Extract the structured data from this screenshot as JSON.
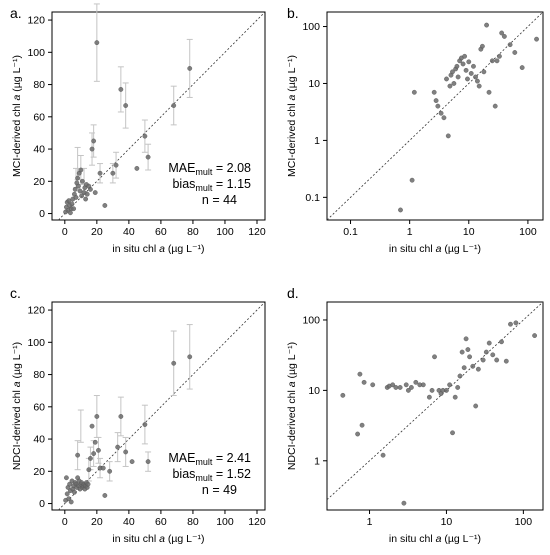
{
  "chart_data": [
    {
      "panel": "a.",
      "type": "scatter",
      "xlabel": "in situ chl a (µg L⁻¹)",
      "ylabel": "MCI-derived chl a (µg L⁻¹)",
      "xscale": "linear",
      "yscale": "linear",
      "xlim": [
        -8,
        125
      ],
      "ylim": [
        -4,
        125
      ],
      "xticks": [
        0,
        20,
        40,
        60,
        80,
        100,
        120
      ],
      "yticks": [
        0,
        20,
        40,
        60,
        80,
        100,
        120
      ],
      "xtick_labels": [
        "0",
        "20",
        "40",
        "60",
        "80",
        "100",
        "120"
      ],
      "ytick_labels": [
        "0",
        "20",
        "40",
        "60",
        "80",
        "100",
        "120"
      ],
      "one_to_one_line": true,
      "annotations": {
        "mae_label": "MAE",
        "mae_sub": "mult",
        "mae_value": " = 2.08",
        "bias_label": "bias",
        "bias_sub": "mult",
        "bias_value": " = 1.15",
        "n_text": "n = 44"
      },
      "points": [
        [
          0.5,
          1
        ],
        [
          1,
          4
        ],
        [
          1.5,
          7
        ],
        [
          2,
          2
        ],
        [
          2.5,
          8
        ],
        [
          3,
          5
        ],
        [
          3.5,
          0.5
        ],
        [
          4,
          3
        ],
        [
          4.5,
          6
        ],
        [
          5,
          9
        ],
        [
          5.5,
          3
        ],
        [
          6,
          12
        ],
        [
          6.5,
          15
        ],
        [
          7,
          10
        ],
        [
          7.5,
          19
        ],
        [
          8,
          22
        ],
        [
          8.5,
          17
        ],
        [
          9,
          25
        ],
        [
          9.5,
          14
        ],
        [
          10,
          27
        ],
        [
          10.5,
          11
        ],
        [
          11,
          20
        ],
        [
          12,
          13
        ],
        [
          12.5,
          16
        ],
        [
          13,
          9
        ],
        [
          13.5,
          18
        ],
        [
          14,
          12
        ],
        [
          15,
          17
        ],
        [
          16,
          15
        ],
        [
          17,
          40
        ],
        [
          18,
          45
        ],
        [
          19,
          13
        ],
        [
          20,
          106
        ],
        [
          22,
          25
        ],
        [
          25,
          5
        ],
        [
          30,
          25
        ],
        [
          32,
          30
        ],
        [
          35,
          77
        ],
        [
          38,
          67
        ],
        [
          45,
          28
        ],
        [
          50,
          48
        ],
        [
          52,
          35
        ],
        [
          68,
          67
        ],
        [
          78,
          90
        ]
      ],
      "errors": [
        [
          7,
          22,
          6
        ],
        [
          8,
          31,
          10
        ],
        [
          10,
          27,
          9
        ],
        [
          12,
          20,
          8
        ],
        [
          17,
          40,
          10
        ],
        [
          18,
          45,
          10
        ],
        [
          20,
          106,
          24
        ],
        [
          22,
          25,
          6
        ],
        [
          30,
          25,
          6
        ],
        [
          32,
          30,
          8
        ],
        [
          35,
          77,
          14
        ],
        [
          38,
          67,
          14
        ],
        [
          50,
          48,
          10
        ],
        [
          52,
          35,
          8
        ],
        [
          68,
          67,
          12
        ],
        [
          78,
          90,
          18
        ]
      ]
    },
    {
      "panel": "b.",
      "type": "scatter",
      "xlabel": "in situ chl a (µg L⁻¹)",
      "ylabel": "MCI-derived chl a (µg L⁻¹)",
      "xscale": "log",
      "yscale": "log",
      "xlim": [
        0.04,
        180
      ],
      "ylim": [
        0.04,
        180
      ],
      "xticks": [
        0.1,
        1,
        10,
        100
      ],
      "yticks": [
        0.1,
        1,
        10,
        100
      ],
      "xtick_labels": [
        "0.1",
        "1",
        "10",
        "100"
      ],
      "ytick_labels": [
        "0.1",
        "1",
        "10",
        "100"
      ],
      "one_to_one_line": true,
      "points": [
        [
          0.7,
          0.06
        ],
        [
          1.1,
          0.2
        ],
        [
          1.2,
          7
        ],
        [
          2.6,
          7
        ],
        [
          2.8,
          5
        ],
        [
          3,
          4
        ],
        [
          3.4,
          3
        ],
        [
          3.8,
          2.5
        ],
        [
          4.2,
          12
        ],
        [
          4.5,
          1.2
        ],
        [
          4.8,
          9
        ],
        [
          5,
          14
        ],
        [
          5.3,
          16
        ],
        [
          5.6,
          10
        ],
        [
          6,
          18
        ],
        [
          6.3,
          20
        ],
        [
          6.6,
          13
        ],
        [
          7,
          25
        ],
        [
          7.5,
          28
        ],
        [
          8,
          22
        ],
        [
          8.5,
          30
        ],
        [
          9,
          17
        ],
        [
          9.5,
          12
        ],
        [
          10,
          24
        ],
        [
          11,
          15
        ],
        [
          12,
          20
        ],
        [
          13,
          13
        ],
        [
          14,
          11
        ],
        [
          15,
          9
        ],
        [
          16,
          40
        ],
        [
          17,
          45
        ],
        [
          18,
          16
        ],
        [
          20,
          106
        ],
        [
          22,
          7
        ],
        [
          25,
          25
        ],
        [
          28,
          4
        ],
        [
          30,
          25
        ],
        [
          33,
          30
        ],
        [
          36,
          77
        ],
        [
          40,
          67
        ],
        [
          50,
          48
        ],
        [
          60,
          35
        ],
        [
          80,
          19
        ],
        [
          140,
          60
        ]
      ]
    },
    {
      "panel": "c.",
      "type": "scatter",
      "xlabel": "in situ chl a (µg L⁻¹)",
      "ylabel": "NDCI-derived chl a (µg L⁻¹)",
      "xscale": "linear",
      "yscale": "linear",
      "xlim": [
        -8,
        125
      ],
      "ylim": [
        -4,
        125
      ],
      "xticks": [
        0,
        20,
        40,
        60,
        80,
        100,
        120
      ],
      "yticks": [
        0,
        20,
        40,
        60,
        80,
        100,
        120
      ],
      "xtick_labels": [
        "0",
        "20",
        "40",
        "60",
        "80",
        "100",
        "120"
      ],
      "ytick_labels": [
        "0",
        "20",
        "40",
        "60",
        "80",
        "100",
        "120"
      ],
      "one_to_one_line": true,
      "annotations": {
        "mae_label": "MAE",
        "mae_sub": "mult",
        "mae_value": " = 2.41",
        "bias_label": "bias",
        "bias_sub": "mult",
        "bias_value": " = 1.52",
        "n_text": "n = 49"
      },
      "points": [
        [
          0.5,
          2
        ],
        [
          1,
          16
        ],
        [
          1.5,
          6
        ],
        [
          2,
          10
        ],
        [
          2.5,
          3
        ],
        [
          3,
          12
        ],
        [
          3.5,
          8
        ],
        [
          4,
          1
        ],
        [
          4.5,
          14
        ],
        [
          5,
          9
        ],
        [
          5.5,
          11
        ],
        [
          6,
          7
        ],
        [
          6.5,
          13
        ],
        [
          7,
          12
        ],
        [
          7.5,
          10
        ],
        [
          8,
          16
        ],
        [
          8.5,
          11
        ],
        [
          9,
          14
        ],
        [
          9.5,
          9
        ],
        [
          10,
          12
        ],
        [
          10.5,
          13
        ],
        [
          11,
          10
        ],
        [
          11.5,
          11
        ],
        [
          12,
          12
        ],
        [
          12.5,
          9
        ],
        [
          13,
          11
        ],
        [
          13.5,
          13
        ],
        [
          14,
          10
        ],
        [
          14.5,
          12
        ],
        [
          15,
          21
        ],
        [
          16,
          28
        ],
        [
          17,
          48
        ],
        [
          18,
          31
        ],
        [
          19,
          38
        ],
        [
          20,
          54
        ],
        [
          21,
          33
        ],
        [
          22,
          22
        ],
        [
          24,
          22
        ],
        [
          25,
          5
        ],
        [
          28,
          20
        ],
        [
          33,
          35
        ],
        [
          35,
          54
        ],
        [
          38,
          32
        ],
        [
          42,
          26
        ],
        [
          50,
          49
        ],
        [
          52,
          26
        ],
        [
          68,
          87
        ],
        [
          78,
          91
        ],
        [
          8,
          30
        ]
      ],
      "errors": [
        [
          8,
          30,
          9
        ],
        [
          10,
          48,
          10
        ],
        [
          15,
          21,
          7
        ],
        [
          16,
          28,
          7
        ],
        [
          18,
          31,
          8
        ],
        [
          20,
          54,
          13
        ],
        [
          21,
          33,
          8
        ],
        [
          22,
          22,
          6
        ],
        [
          28,
          20,
          6
        ],
        [
          33,
          35,
          9
        ],
        [
          35,
          54,
          12
        ],
        [
          38,
          32,
          9
        ],
        [
          50,
          49,
          12
        ],
        [
          52,
          26,
          6
        ],
        [
          68,
          87,
          20
        ],
        [
          78,
          91,
          20
        ]
      ]
    },
    {
      "panel": "d.",
      "type": "scatter",
      "xlabel": "in situ chl a (µg L⁻¹)",
      "ylabel": "NDCI-derived chl a (µg L⁻¹)",
      "xscale": "log",
      "yscale": "log",
      "xlim": [
        0.28,
        180
      ],
      "ylim": [
        0.2,
        180
      ],
      "xticks": [
        1,
        10,
        100
      ],
      "yticks": [
        1,
        10,
        100
      ],
      "xtick_labels": [
        "1",
        "10",
        "100"
      ],
      "ytick_labels": [
        "1",
        "10",
        "100"
      ],
      "one_to_one_line": true,
      "points": [
        [
          0.45,
          8.5
        ],
        [
          0.7,
          2.4
        ],
        [
          0.75,
          17
        ],
        [
          0.8,
          3.2
        ],
        [
          0.85,
          13
        ],
        [
          1.1,
          12
        ],
        [
          1.5,
          1.2
        ],
        [
          1.7,
          11
        ],
        [
          1.8,
          11.5
        ],
        [
          2,
          12
        ],
        [
          2.2,
          11
        ],
        [
          2.5,
          11
        ],
        [
          2.8,
          0.25
        ],
        [
          3,
          12
        ],
        [
          3.2,
          10
        ],
        [
          3.5,
          11
        ],
        [
          4,
          13
        ],
        [
          4.5,
          12
        ],
        [
          5,
          12
        ],
        [
          6,
          8
        ],
        [
          6.5,
          10
        ],
        [
          7,
          30
        ],
        [
          8,
          10
        ],
        [
          8.5,
          9
        ],
        [
          9,
          10
        ],
        [
          10,
          10
        ],
        [
          11,
          12
        ],
        [
          12,
          2.5
        ],
        [
          13,
          8
        ],
        [
          14,
          11
        ],
        [
          15,
          16
        ],
        [
          16,
          35
        ],
        [
          17,
          21
        ],
        [
          18,
          54
        ],
        [
          19,
          38
        ],
        [
          20,
          30
        ],
        [
          22,
          22
        ],
        [
          24,
          6
        ],
        [
          26,
          20
        ],
        [
          30,
          27
        ],
        [
          33,
          35
        ],
        [
          36,
          47
        ],
        [
          40,
          32
        ],
        [
          45,
          27
        ],
        [
          52,
          49
        ],
        [
          60,
          26
        ],
        [
          68,
          87
        ],
        [
          80,
          91
        ],
        [
          140,
          60
        ]
      ]
    }
  ]
}
